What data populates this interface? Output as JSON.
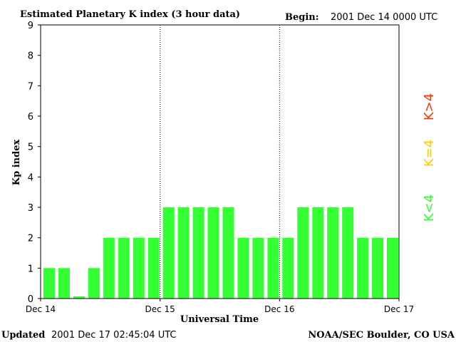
{
  "chart_data": {
    "type": "bar",
    "title": "Estimated Planetary K index (3 hour data)",
    "begin_label": "Begin:",
    "begin_value": "2001 Dec 14 0000 UTC",
    "ylabel": "Kp index",
    "xlabel": "Universal Time",
    "ylim": [
      0,
      9
    ],
    "yticks": [
      "0",
      "1",
      "2",
      "3",
      "4",
      "5",
      "6",
      "7",
      "8",
      "9"
    ],
    "day_ticks": [
      "Dec 14",
      "Dec 15",
      "Dec 16",
      "Dec 17"
    ],
    "bars_per_day": 8,
    "values": [
      1,
      1,
      0.07,
      1,
      2,
      2,
      2,
      2,
      3,
      3,
      3,
      3,
      3,
      2,
      2,
      2,
      2,
      3,
      3,
      3,
      3,
      2,
      2,
      2
    ],
    "bar_color": "#33ff33",
    "day_separators": "dotted",
    "grid": false,
    "legend": [
      {
        "label": "K<4",
        "color": "#33ff33"
      },
      {
        "label": "K=4",
        "color": "#ffcc00"
      },
      {
        "label": "K>4",
        "color": "#ff3300"
      }
    ],
    "legend_position": "right, vertical"
  },
  "footer": {
    "updated_label": "Updated",
    "updated_value": "2001 Dec 17 02:45:04 UTC",
    "credit": "NOAA/SEC Boulder, CO USA"
  }
}
